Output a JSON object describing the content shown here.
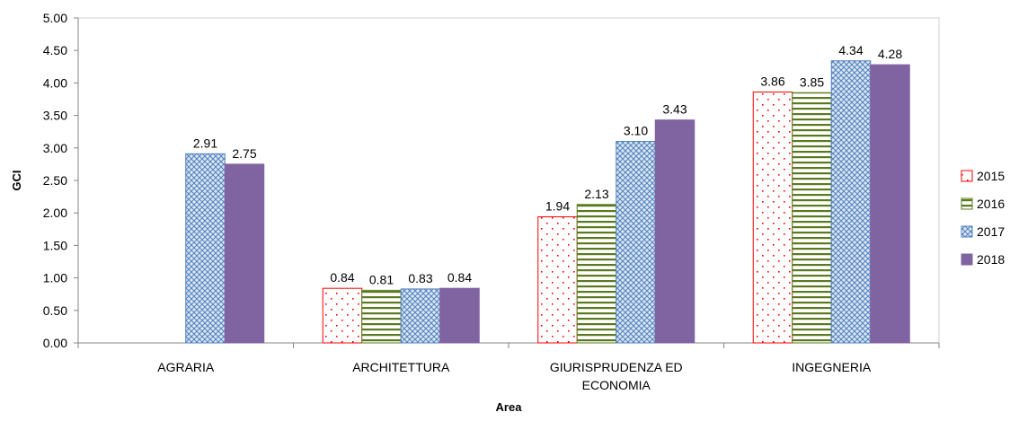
{
  "chart_data": {
    "type": "bar",
    "categories": [
      "AGRARIA",
      "ARCHITETTURA",
      "GIURISPRUDENZA ED ECONOMIA",
      "INGEGNERIA"
    ],
    "category_lines": [
      [
        "AGRARIA"
      ],
      [
        "ARCHITETTURA"
      ],
      [
        "GIURISPRUDENZA ED",
        "ECONOMIA"
      ],
      [
        "INGEGNERIA"
      ]
    ],
    "series": [
      {
        "name": "2015",
        "values": [
          null,
          0.84,
          1.94,
          3.86
        ],
        "labels": [
          "",
          "0.84",
          "1.94",
          "3.86"
        ],
        "pattern": "dots",
        "color": "#ff0000"
      },
      {
        "name": "2016",
        "values": [
          null,
          0.81,
          2.13,
          3.85
        ],
        "labels": [
          "",
          "0.81",
          "2.13",
          "3.85"
        ],
        "pattern": "hlines",
        "color": "#5a7a1e"
      },
      {
        "name": "2017",
        "values": [
          2.91,
          0.83,
          3.1,
          4.34
        ],
        "labels": [
          "2.91",
          "0.83",
          "3.10",
          "4.34"
        ],
        "pattern": "crosshatch",
        "color": "#4f81bd"
      },
      {
        "name": "2018",
        "values": [
          2.75,
          0.84,
          3.43,
          4.28
        ],
        "labels": [
          "2.75",
          "0.84",
          "3.43",
          "4.28"
        ],
        "pattern": "solid",
        "color": "#8064a2"
      }
    ],
    "yticks": [
      "0.00",
      "0.50",
      "1.00",
      "1.50",
      "2.00",
      "2.50",
      "3.00",
      "3.50",
      "4.00",
      "4.50",
      "5.00"
    ],
    "ylim": [
      0,
      5
    ],
    "xlabel": "Area",
    "ylabel": "GCI",
    "legend_position": "right",
    "grid": false
  }
}
